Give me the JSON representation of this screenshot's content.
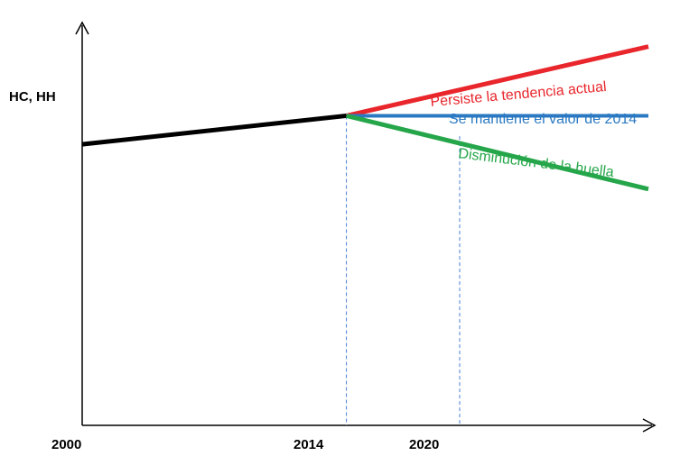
{
  "chart_data": {
    "type": "line",
    "title": "",
    "ylabel": "HC, HH",
    "xlabel": "",
    "x_ticks": [
      "2000",
      "2014",
      "2020"
    ],
    "xlim": [
      2000,
      2030
    ],
    "ylim": [
      0,
      10
    ],
    "grid": false,
    "vertical_markers": [
      2014,
      2020
    ],
    "series": [
      {
        "name": "",
        "color": "#000000",
        "x": [
          2000,
          2014
        ],
        "y": [
          6.9,
          7.6
        ]
      },
      {
        "name": "Persiste la tendencia actual",
        "color": "#e8262c",
        "x": [
          2014,
          2030
        ],
        "y": [
          7.6,
          9.3
        ]
      },
      {
        "name": "Se mantiene el  valor de 2014",
        "color": "#2b79c2",
        "x": [
          2014,
          2030
        ],
        "y": [
          7.6,
          7.6
        ]
      },
      {
        "name": "Disminución  de la huella",
        "color": "#26a64a",
        "x": [
          2014,
          2030
        ],
        "y": [
          7.6,
          5.8
        ]
      }
    ]
  }
}
